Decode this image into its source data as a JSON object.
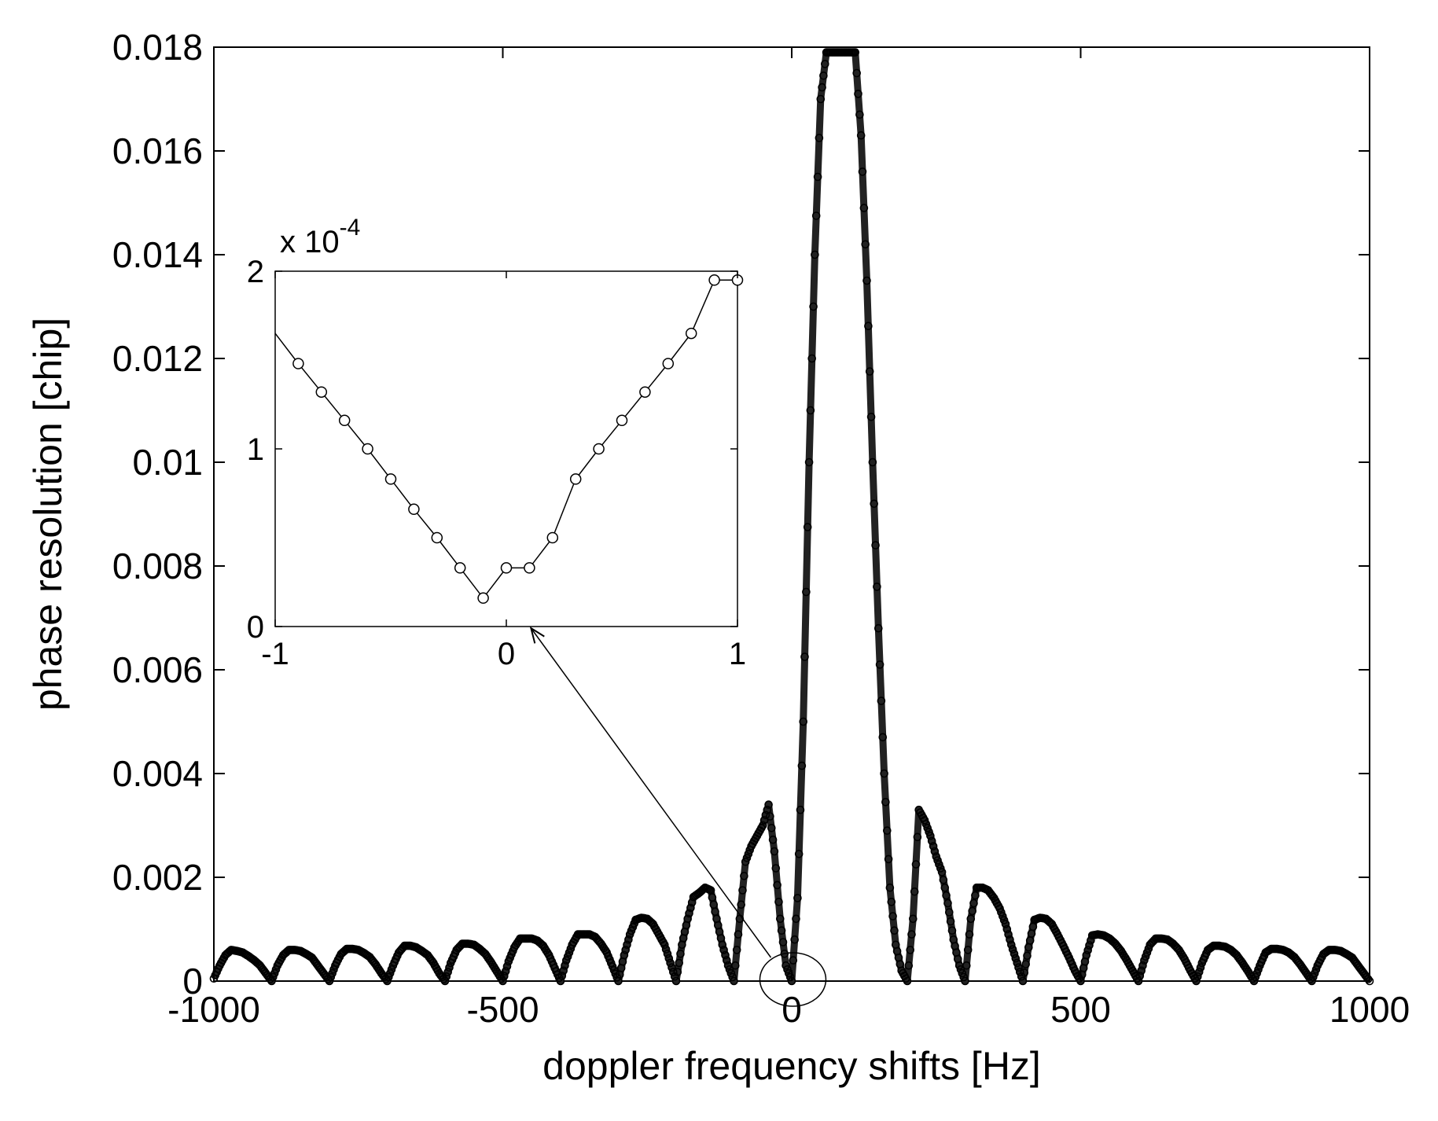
{
  "chart_data": [
    {
      "type": "line",
      "xlabel": "doppler frequency shifts [Hz]",
      "ylabel": "phase resolution [chip]",
      "xlim": [
        -1000,
        1000
      ],
      "ylim": [
        0,
        0.018
      ],
      "xticks": [
        -1000,
        -500,
        0,
        500,
        1000
      ],
      "xtick_labels": [
        "-1000",
        "-500",
        "0",
        "500",
        "1000"
      ],
      "yticks": [
        0,
        0.002,
        0.004,
        0.006,
        0.008,
        0.01,
        0.012,
        0.014,
        0.016,
        0.018
      ],
      "ytick_labels": [
        "0",
        "0.002",
        "0.004",
        "0.006",
        "0.008",
        "0.01",
        "0.012",
        "0.014",
        "0.016",
        "0.018"
      ],
      "marker": "circle",
      "grid": false,
      "series": [
        {
          "x": [
            -1000,
            -990,
            -980,
            -970,
            -960,
            -950,
            -940,
            -930,
            -920,
            -910,
            -900,
            -890,
            -880,
            -870,
            -860,
            -850,
            -840,
            -830,
            -820,
            -810,
            -800,
            -790,
            -780,
            -770,
            -760,
            -750,
            -740,
            -730,
            -720,
            -710,
            -700,
            -690,
            -680,
            -670,
            -660,
            -650,
            -640,
            -630,
            -620,
            -610,
            -600,
            -590,
            -580,
            -570,
            -560,
            -550,
            -540,
            -530,
            -520,
            -510,
            -500,
            -490,
            -480,
            -470,
            -460,
            -450,
            -440,
            -430,
            -420,
            -410,
            -400,
            -390,
            -380,
            -370,
            -360,
            -350,
            -340,
            -330,
            -320,
            -310,
            -300,
            -290,
            -280,
            -270,
            -260,
            -250,
            -240,
            -230,
            -220,
            -210,
            -200,
            -190,
            -180,
            -170,
            -160,
            -150,
            -140,
            -130,
            -120,
            -110,
            -100,
            -90,
            -80,
            -70,
            -60,
            -50,
            -40,
            -30,
            -20,
            -10,
            0,
            10,
            20,
            30,
            40,
            50,
            60,
            70,
            80,
            90,
            100,
            110,
            120,
            130,
            140,
            150,
            160,
            170,
            180,
            190,
            200,
            210,
            220,
            230,
            240,
            250,
            260,
            270,
            280,
            290,
            300,
            310,
            320,
            330,
            340,
            350,
            360,
            370,
            380,
            390,
            400,
            410,
            420,
            430,
            440,
            450,
            460,
            470,
            480,
            490,
            500,
            510,
            520,
            530,
            540,
            550,
            560,
            570,
            580,
            590,
            600,
            610,
            620,
            630,
            640,
            650,
            660,
            670,
            680,
            690,
            700,
            710,
            720,
            730,
            740,
            750,
            760,
            770,
            780,
            790,
            800,
            810,
            820,
            830,
            840,
            850,
            860,
            870,
            880,
            890,
            900,
            910,
            920,
            930,
            940,
            950,
            960,
            970,
            980,
            990,
            1000
          ],
          "y": [
            5e-05,
            0.0003,
            0.0005,
            0.0006,
            0.00058,
            0.00055,
            0.00048,
            0.0004,
            0.0003,
            0.00015,
            0.0,
            0.0003,
            0.0005,
            0.0006,
            0.0006,
            0.00058,
            0.00052,
            0.00045,
            0.0003,
            0.00015,
            0.0,
            0.0003,
            0.00052,
            0.00062,
            0.00062,
            0.0006,
            0.00054,
            0.00046,
            0.00032,
            0.00015,
            0.0,
            0.0003,
            0.00055,
            0.00068,
            0.00068,
            0.00065,
            0.00058,
            0.0005,
            0.00035,
            0.00015,
            0.0,
            0.00035,
            0.0006,
            0.00072,
            0.00072,
            0.0007,
            0.00062,
            0.00052,
            0.00036,
            0.00018,
            0.0,
            0.00038,
            0.00065,
            0.00082,
            0.00082,
            0.00082,
            0.00078,
            0.00068,
            0.0005,
            0.00025,
            0.0,
            0.0004,
            0.0007,
            0.0009,
            0.0009,
            0.0009,
            0.00085,
            0.00072,
            0.00055,
            0.00028,
            0.0,
            0.0005,
            0.0009,
            0.00118,
            0.00122,
            0.0012,
            0.0011,
            0.0009,
            0.0007,
            0.00035,
            0.0,
            0.0007,
            0.0012,
            0.00162,
            0.0017,
            0.0018,
            0.00175,
            0.0012,
            0.0007,
            0.0003,
            0.0,
            0.0012,
            0.0023,
            0.0026,
            0.0028,
            0.003,
            0.0034,
            0.0025,
            0.0012,
            0.0003,
            0.0,
            0.0016,
            0.005,
            0.01,
            0.014,
            0.017,
            0.0179,
            0.0179,
            0.0179,
            0.0179,
            0.0179,
            0.0179,
            0.0163,
            0.0135,
            0.01,
            0.0068,
            0.004,
            0.0018,
            0.0007,
            0.0002,
            0.0,
            0.0012,
            0.0033,
            0.0031,
            0.0028,
            0.0024,
            0.0021,
            0.0015,
            0.0008,
            0.0003,
            0.0,
            0.0012,
            0.0018,
            0.0018,
            0.00175,
            0.0016,
            0.0014,
            0.0011,
            0.0007,
            0.00035,
            0.0,
            0.00065,
            0.00118,
            0.00122,
            0.0012,
            0.0011,
            0.0009,
            0.00068,
            0.00045,
            0.0002,
            0.0,
            0.0005,
            0.00088,
            0.0009,
            0.00088,
            0.00082,
            0.00072,
            0.00058,
            0.0004,
            0.0002,
            0.0,
            0.0004,
            0.0007,
            0.00082,
            0.00082,
            0.0008,
            0.00072,
            0.0006,
            0.00042,
            0.0002,
            0.0,
            0.00035,
            0.0006,
            0.00068,
            0.00068,
            0.00066,
            0.0006,
            0.0005,
            0.00035,
            0.00018,
            0.0,
            0.0003,
            0.00055,
            0.00062,
            0.00062,
            0.0006,
            0.00055,
            0.00046,
            0.00032,
            0.00016,
            0.0,
            0.0003,
            0.00052,
            0.0006,
            0.0006,
            0.00058,
            0.00052,
            0.00045,
            0.0003,
            0.00015,
            0.0
          ]
        }
      ]
    },
    {
      "type": "line",
      "xlim": [
        -1,
        1
      ],
      "ylim": [
        0,
        2
      ],
      "xticks": [
        -1,
        0,
        1
      ],
      "xtick_labels": [
        "-1",
        "0",
        "1"
      ],
      "yticks": [
        0,
        1,
        2
      ],
      "ytick_labels": [
        "0",
        "1",
        "2"
      ],
      "scale_label_base": "x 10",
      "scale_label_exponent": "-4",
      "marker": "circle",
      "series": [
        {
          "x": [
            -1.0,
            -0.9,
            -0.8,
            -0.7,
            -0.6,
            -0.5,
            -0.4,
            -0.3,
            -0.2,
            -0.1,
            0.0,
            0.1,
            0.2,
            0.3,
            0.4,
            0.5,
            0.6,
            0.7,
            0.8,
            0.9,
            1.0
          ],
          "y": [
            1.65,
            1.48,
            1.32,
            1.16,
            1.0,
            0.83,
            0.66,
            0.5,
            0.33,
            0.16,
            0.33,
            0.33,
            0.5,
            0.83,
            1.0,
            1.16,
            1.32,
            1.48,
            1.65,
            1.95,
            1.95
          ],
          "marker_at": [
            -0.9,
            -0.8,
            -0.7,
            -0.6,
            -0.5,
            -0.4,
            -0.3,
            -0.2,
            -0.1,
            0.0,
            0.1,
            0.2,
            0.3,
            0.4,
            0.5,
            0.6,
            0.7,
            0.8,
            0.9,
            1.0
          ]
        }
      ]
    }
  ]
}
